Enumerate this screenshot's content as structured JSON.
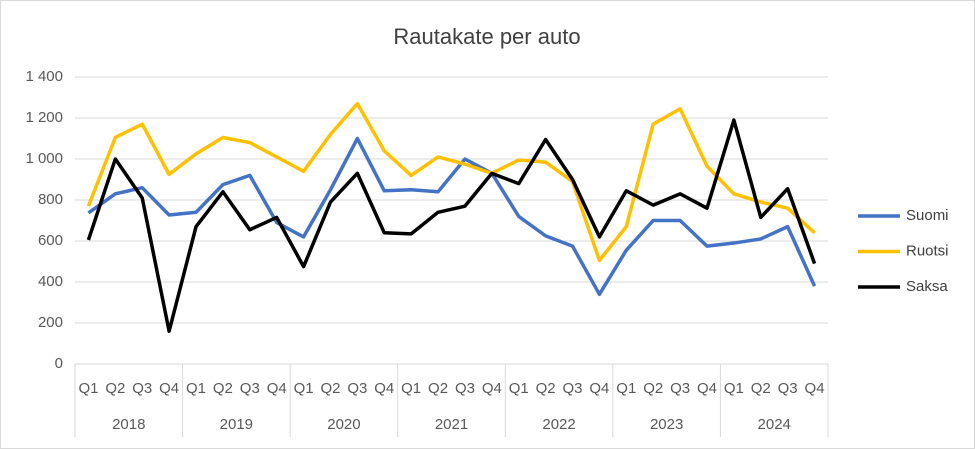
{
  "chart_data": {
    "type": "line",
    "title": "Rautakate per auto",
    "categories": [
      "Q1",
      "Q2",
      "Q3",
      "Q4",
      "Q1",
      "Q2",
      "Q3",
      "Q4",
      "Q1",
      "Q2",
      "Q3",
      "Q4",
      "Q1",
      "Q2",
      "Q3",
      "Q4",
      "Q1",
      "Q2",
      "Q3",
      "Q4",
      "Q1",
      "Q2",
      "Q3",
      "Q4",
      "Q1",
      "Q2",
      "Q3",
      "Q4"
    ],
    "category_groups": [
      "2018",
      "2019",
      "2020",
      "2021",
      "2022",
      "2023",
      "2024"
    ],
    "series": [
      {
        "name": "Suomi",
        "color": "#4472c4",
        "values": [
          737,
          830,
          860,
          727,
          740,
          875,
          920,
          690,
          620,
          850,
          1100,
          845,
          850,
          840,
          1000,
          930,
          720,
          625,
          575,
          340,
          555,
          700,
          700,
          575,
          590,
          610,
          670,
          380
        ]
      },
      {
        "name": "Ruotsi",
        "color": "#ffc000",
        "values": [
          770,
          1105,
          1170,
          925,
          1025,
          1105,
          1080,
          1010,
          940,
          1120,
          1270,
          1040,
          920,
          1010,
          975,
          930,
          995,
          985,
          890,
          505,
          670,
          1170,
          1245,
          965,
          830,
          790,
          760,
          640
        ]
      },
      {
        "name": "Saksa",
        "color": "#000000",
        "values": [
          605,
          1000,
          810,
          160,
          670,
          840,
          655,
          715,
          475,
          790,
          930,
          640,
          635,
          740,
          770,
          930,
          880,
          1095,
          900,
          620,
          845,
          775,
          830,
          760,
          1190,
          715,
          855,
          490
        ]
      }
    ],
    "ylim": [
      0,
      1400
    ],
    "yticks": [
      0,
      {
        "value": 200,
        "label": "200"
      },
      400,
      600,
      800,
      {
        "value": 1000,
        "label": "1 000"
      },
      {
        "value": 1200,
        "label": "1 200"
      },
      {
        "value": 1400,
        "label": "1 400"
      }
    ],
    "grid": true,
    "legend": "right"
  }
}
